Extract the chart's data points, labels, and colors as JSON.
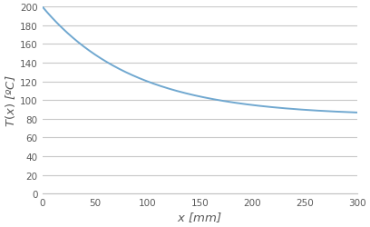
{
  "xlabel": "$x$ [mm]",
  "ylabel": "$T(x)$ [ºC]",
  "xlim": [
    0,
    300
  ],
  "ylim": [
    0,
    200
  ],
  "xticks": [
    0,
    50,
    100,
    150,
    200,
    250,
    300
  ],
  "yticks": [
    0,
    20,
    40,
    60,
    80,
    100,
    120,
    140,
    160,
    180,
    200
  ],
  "line_color": "#70a8d0",
  "line_width": 1.4,
  "plot_bg_color": "#ffffff",
  "fig_bg_color": "#ffffff",
  "grid_color": "#c8c8c8",
  "tick_label_color": "#595959",
  "tick_label_size": 7.5,
  "label_size": 9.5,
  "T0": 200.0,
  "T_inf": 83.0,
  "decay": 0.0115
}
